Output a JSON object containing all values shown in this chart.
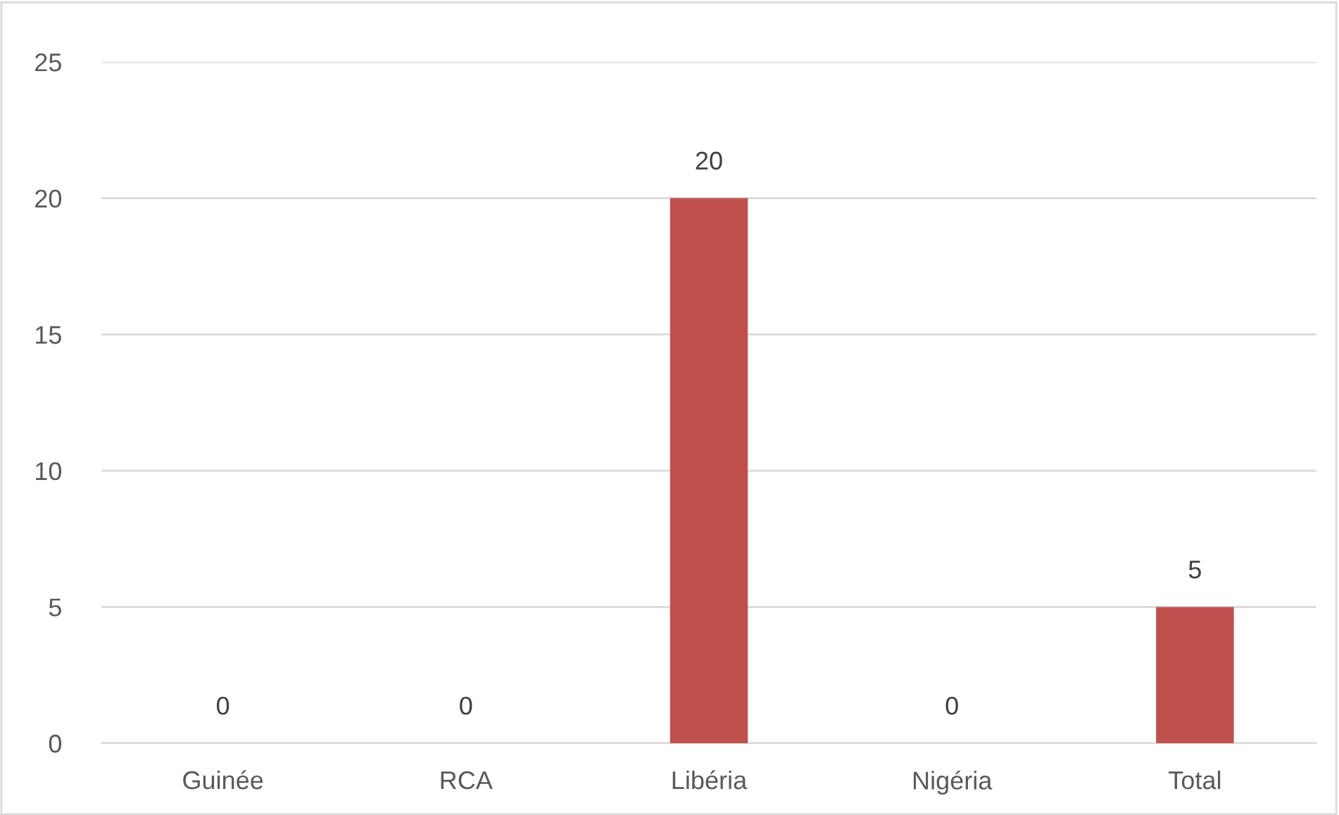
{
  "chart_data": {
    "type": "bar",
    "categories": [
      "Guinée",
      "RCA",
      "Libéria",
      "Nigéria",
      "Total"
    ],
    "values": [
      0,
      0,
      20,
      0,
      5
    ],
    "color": "#c0504d",
    "ylim": [
      0,
      25
    ],
    "yticks": [
      0,
      5,
      10,
      15,
      20,
      25
    ],
    "grid": "y",
    "data_labels": true
  }
}
